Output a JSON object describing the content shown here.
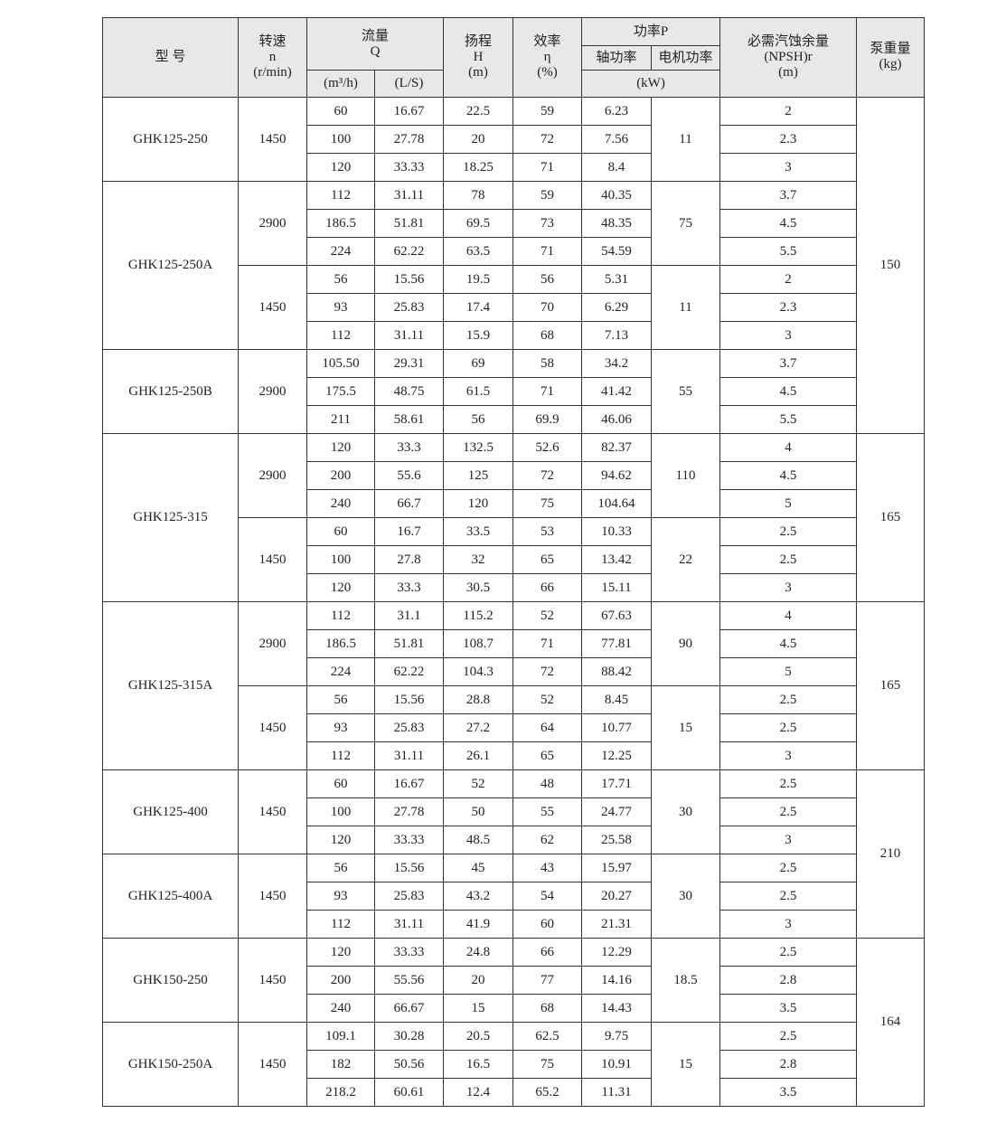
{
  "header": {
    "model": "型 号",
    "speed": [
      "转速",
      "n",
      "(r/min)"
    ],
    "flow": [
      "流量",
      "Q"
    ],
    "flow_m3h": "(m³/h)",
    "flow_ls": "(L/S)",
    "head": [
      "扬程",
      "H",
      "(m)"
    ],
    "efficiency": [
      "效率",
      "η",
      "(%)"
    ],
    "power": "功率P",
    "shaft_power": "轴功率",
    "motor_power": "电机功率",
    "power_unit": "(kW)",
    "npsh": [
      "必需汽蚀余量",
      "(NPSH)r",
      "(m)"
    ],
    "weight": [
      "泵重量",
      "(kg)"
    ]
  },
  "models": [
    {
      "name": "GHK125-250",
      "rows": 3
    },
    {
      "name": "GHK125-250A",
      "rows": 6
    },
    {
      "name": "GHK125-250B",
      "rows": 3
    },
    {
      "name": "GHK125-315",
      "rows": 6
    },
    {
      "name": "GHK125-315A",
      "rows": 6
    },
    {
      "name": "GHK125-400",
      "rows": 3
    },
    {
      "name": "GHK125-400A",
      "rows": 3
    },
    {
      "name": "GHK150-250",
      "rows": 3
    },
    {
      "name": "GHK150-250A",
      "rows": 3
    }
  ],
  "speed_groups": [
    {
      "speed": "1450",
      "motor": "11"
    },
    {
      "speed": "2900",
      "motor": "75"
    },
    {
      "speed": "1450",
      "motor": "11"
    },
    {
      "speed": "2900",
      "motor": "55"
    },
    {
      "speed": "2900",
      "motor": "110"
    },
    {
      "speed": "1450",
      "motor": "22"
    },
    {
      "speed": "2900",
      "motor": "90"
    },
    {
      "speed": "1450",
      "motor": "15"
    },
    {
      "speed": "1450",
      "motor": "30"
    },
    {
      "speed": "1450",
      "motor": "30"
    },
    {
      "speed": "1450",
      "motor": "18.5"
    },
    {
      "speed": "1450",
      "motor": "15"
    }
  ],
  "weights": [
    {
      "value": "150",
      "rows": 12
    },
    {
      "value": "165",
      "rows": 6
    },
    {
      "value": "165",
      "rows": 6
    },
    {
      "value": "210",
      "rows": 6
    },
    {
      "value": "164",
      "rows": 6
    }
  ],
  "rows": [
    [
      "60",
      "16.67",
      "22.5",
      "59",
      "6.23",
      "2"
    ],
    [
      "100",
      "27.78",
      "20",
      "72",
      "7.56",
      "2.3"
    ],
    [
      "120",
      "33.33",
      "18.25",
      "71",
      "8.4",
      "3"
    ],
    [
      "112",
      "31.11",
      "78",
      "59",
      "40.35",
      "3.7"
    ],
    [
      "186.5",
      "51.81",
      "69.5",
      "73",
      "48.35",
      "4.5"
    ],
    [
      "224",
      "62.22",
      "63.5",
      "71",
      "54.59",
      "5.5"
    ],
    [
      "56",
      "15.56",
      "19.5",
      "56",
      "5.31",
      "2"
    ],
    [
      "93",
      "25.83",
      "17.4",
      "70",
      "6.29",
      "2.3"
    ],
    [
      "112",
      "31.11",
      "15.9",
      "68",
      "7.13",
      "3"
    ],
    [
      "105.50",
      "29.31",
      "69",
      "58",
      "34.2",
      "3.7"
    ],
    [
      "175.5",
      "48.75",
      "61.5",
      "71",
      "41.42",
      "4.5"
    ],
    [
      "211",
      "58.61",
      "56",
      "69.9",
      "46.06",
      "5.5"
    ],
    [
      "120",
      "33.3",
      "132.5",
      "52.6",
      "82.37",
      "4"
    ],
    [
      "200",
      "55.6",
      "125",
      "72",
      "94.62",
      "4.5"
    ],
    [
      "240",
      "66.7",
      "120",
      "75",
      "104.64",
      "5"
    ],
    [
      "60",
      "16.7",
      "33.5",
      "53",
      "10.33",
      "2.5"
    ],
    [
      "100",
      "27.8",
      "32",
      "65",
      "13.42",
      "2.5"
    ],
    [
      "120",
      "33.3",
      "30.5",
      "66",
      "15.11",
      "3"
    ],
    [
      "112",
      "31.1",
      "115.2",
      "52",
      "67.63",
      "4"
    ],
    [
      "186.5",
      "51.81",
      "108.7",
      "71",
      "77.81",
      "4.5"
    ],
    [
      "224",
      "62.22",
      "104.3",
      "72",
      "88.42",
      "5"
    ],
    [
      "56",
      "15.56",
      "28.8",
      "52",
      "8.45",
      "2.5"
    ],
    [
      "93",
      "25.83",
      "27.2",
      "64",
      "10.77",
      "2.5"
    ],
    [
      "112",
      "31.11",
      "26.1",
      "65",
      "12.25",
      "3"
    ],
    [
      "60",
      "16.67",
      "52",
      "48",
      "17.71",
      "2.5"
    ],
    [
      "100",
      "27.78",
      "50",
      "55",
      "24.77",
      "2.5"
    ],
    [
      "120",
      "33.33",
      "48.5",
      "62",
      "25.58",
      "3"
    ],
    [
      "56",
      "15.56",
      "45",
      "43",
      "15.97",
      "2.5"
    ],
    [
      "93",
      "25.83",
      "43.2",
      "54",
      "20.27",
      "2.5"
    ],
    [
      "112",
      "31.11",
      "41.9",
      "60",
      "21.31",
      "3"
    ],
    [
      "120",
      "33.33",
      "24.8",
      "66",
      "12.29",
      "2.5"
    ],
    [
      "200",
      "55.56",
      "20",
      "77",
      "14.16",
      "2.8"
    ],
    [
      "240",
      "66.67",
      "15",
      "68",
      "14.43",
      "3.5"
    ],
    [
      "109.1",
      "30.28",
      "20.5",
      "62.5",
      "9.75",
      "2.5"
    ],
    [
      "182",
      "50.56",
      "16.5",
      "75",
      "10.91",
      "2.8"
    ],
    [
      "218.2",
      "60.61",
      "12.4",
      "65.2",
      "11.31",
      "3.5"
    ]
  ]
}
